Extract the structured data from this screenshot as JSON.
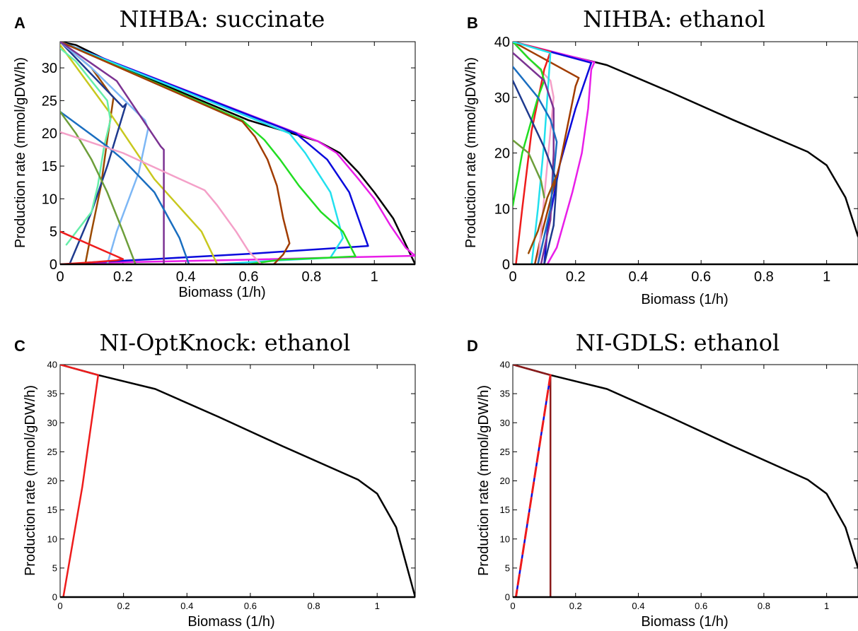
{
  "chart_data": [
    {
      "id": "A",
      "type": "line",
      "panel_label": "A",
      "title": "NIHBA: succinate",
      "xlabel": "Biomass (1/h)",
      "ylabel": "Production rate (mmol/gDW/h)",
      "xlim": [
        0,
        1.13
      ],
      "ylim": [
        0,
        34
      ],
      "xticks": [
        0,
        0.2,
        0.4,
        0.6,
        0.8,
        1
      ],
      "yticks": [
        0,
        5,
        10,
        15,
        20,
        25,
        30
      ],
      "xtick_labels": [
        "0",
        "0.2",
        "0.4",
        "0.6",
        "0.8",
        "1"
      ],
      "ytick_labels": [
        "0",
        "5",
        "10",
        "15",
        "20",
        "25",
        "30"
      ],
      "tick_font_size": 20,
      "grid": false,
      "series": [
        {
          "color": "#000000",
          "x": [
            0,
            0.05,
            0.2,
            0.4,
            0.6,
            0.82,
            0.89,
            0.95,
            1.0,
            1.06,
            1.1,
            1.13
          ],
          "y": [
            34,
            33.5,
            30,
            26,
            22,
            18.8,
            17,
            14,
            11,
            7,
            3,
            0
          ]
        },
        {
          "color": "#e81ee8",
          "x": [
            0,
            0.82,
            0.88,
            0.95,
            1.0,
            1.05,
            1.1,
            1.13,
            0.95,
            0.6,
            0.3,
            0.1,
            0.05
          ],
          "y": [
            34,
            18.8,
            17,
            13,
            10,
            6,
            2.5,
            1.3,
            1.1,
            0.7,
            0.4,
            0.2,
            0
          ]
        },
        {
          "color": "#0a0adc",
          "x": [
            0,
            0.75,
            0.85,
            0.92,
            0.98,
            0.6,
            0.3,
            0.1,
            0.03
          ],
          "y": [
            34,
            20,
            16,
            11,
            2.8,
            1.6,
            0.8,
            0.3,
            0
          ]
        },
        {
          "color": "#22e0ee",
          "x": [
            0,
            0.73,
            0.78,
            0.82,
            0.86,
            0.9,
            0.86,
            0.7,
            0.5
          ],
          "y": [
            34,
            20,
            17,
            14,
            11,
            4,
            1,
            0.6,
            0
          ]
        },
        {
          "color": "#22dd22",
          "x": [
            0,
            0.58,
            0.65,
            0.7,
            0.76,
            0.83,
            0.9,
            0.94,
            0.85,
            0.7,
            0.6
          ],
          "y": [
            34,
            22,
            19,
            16,
            12,
            8,
            5,
            1.2,
            1.0,
            0.7,
            0
          ]
        },
        {
          "color": "#a13c00",
          "x": [
            0,
            0.58,
            0.62,
            0.66,
            0.69,
            0.71,
            0.73,
            0.71,
            0.68
          ],
          "y": [
            34,
            21.8,
            19.5,
            16,
            12,
            7,
            3.2,
            1.5,
            0
          ]
        },
        {
          "color": "#9b4a00",
          "x": [
            0,
            0.1,
            0.16,
            0.17,
            0.15,
            0.13,
            0.1,
            0.08
          ],
          "y": [
            34,
            30,
            26,
            25.5,
            19,
            12,
            5,
            0
          ]
        },
        {
          "color": "#c8c81e",
          "x": [
            0,
            0.16,
            0.3,
            0.45,
            0.5
          ],
          "y": [
            33.5,
            23,
            13,
            5,
            0
          ]
        },
        {
          "color": "#1e3a8e",
          "x": [
            0,
            0.1,
            0.2,
            0.21,
            0.15,
            0.1,
            0.03
          ],
          "y": [
            34,
            29,
            24,
            24.5,
            15,
            8,
            0
          ]
        },
        {
          "color": "#7db7f5",
          "x": [
            0,
            0.1,
            0.27,
            0.28,
            0.25,
            0.18,
            0.15
          ],
          "y": [
            34,
            30,
            22,
            20.7,
            14,
            5,
            0
          ]
        },
        {
          "color": "#7b3292",
          "x": [
            0,
            0.18,
            0.32,
            0.33,
            0.33,
            0.33
          ],
          "y": [
            34,
            28,
            18,
            17.5,
            5,
            0
          ]
        },
        {
          "color": "#66eeaa",
          "x": [
            0,
            0.05,
            0.15,
            0.16,
            0.14,
            0.12,
            0.1,
            0.02
          ],
          "y": [
            33,
            31,
            25,
            22,
            18,
            12,
            8,
            3
          ]
        },
        {
          "color": "#1a6ec0",
          "x": [
            0,
            0.15,
            0.2,
            0.3,
            0.38,
            0.41
          ],
          "y": [
            23.3,
            18,
            16,
            11,
            4,
            0
          ]
        },
        {
          "color": "#6d9e3a",
          "x": [
            0,
            0.05,
            0.1,
            0.15,
            0.2,
            0.24
          ],
          "y": [
            23.3,
            20,
            16,
            11,
            5,
            0
          ]
        },
        {
          "color": "#f4a0c8",
          "x": [
            0,
            0.2,
            0.46,
            0.5,
            0.56,
            0.6,
            0.64
          ],
          "y": [
            20.2,
            17,
            11.3,
            9,
            5,
            2,
            0
          ]
        },
        {
          "color": "#ee1c1c",
          "x": [
            0,
            0.2,
            0.18,
            0.1,
            0.05,
            0.02,
            0
          ],
          "y": [
            5,
            0.8,
            0.6,
            0.3,
            0.15,
            0.05,
            0
          ]
        }
      ]
    },
    {
      "id": "B",
      "type": "line",
      "panel_label": "B",
      "title": "NIHBA: ethanol",
      "xlabel": "Biomass (1/h)",
      "ylabel": "Production rate (mmol/gDW/h)",
      "xlim": [
        0,
        1.1
      ],
      "ylim": [
        0,
        40
      ],
      "xticks": [
        0,
        0.2,
        0.4,
        0.6,
        0.8,
        1
      ],
      "yticks": [
        0,
        10,
        20,
        30,
        40
      ],
      "xtick_labels": [
        "0",
        "0.2",
        "0.4",
        "0.6",
        "0.8",
        "1"
      ],
      "ytick_labels": [
        "0",
        "10",
        "20",
        "30",
        "40"
      ],
      "tick_font_size": 20,
      "grid": false,
      "series": [
        {
          "color": "#000000",
          "x": [
            0,
            0.12,
            0.25,
            0.3,
            0.5,
            0.7,
            0.94,
            1.0,
            1.06,
            1.1
          ],
          "y": [
            40,
            38.2,
            36.5,
            35.8,
            31,
            26,
            20.2,
            17.8,
            12,
            5
          ]
        },
        {
          "color": "#e81ee8",
          "x": [
            0,
            0.26,
            0.25,
            0.24,
            0.22,
            0.19,
            0.16,
            0.14,
            0.12,
            0.11
          ],
          "y": [
            40,
            36.3,
            35,
            28,
            20,
            13,
            7,
            3,
            1,
            0
          ]
        },
        {
          "color": "#0a0adc",
          "x": [
            0,
            0.25,
            0.2,
            0.15,
            0.11,
            0.1
          ],
          "y": [
            40,
            36.2,
            28,
            18,
            6,
            0
          ]
        },
        {
          "color": "#a13c00",
          "x": [
            0,
            0.21,
            0.2,
            0.15,
            0.09,
            0.07
          ],
          "y": [
            40,
            33.5,
            32,
            18,
            5,
            0
          ]
        },
        {
          "color": "#f4a0c8",
          "x": [
            0,
            0.12,
            0.13,
            0.11,
            0.09,
            0.08
          ],
          "y": [
            40,
            33,
            30,
            18,
            6,
            0
          ]
        },
        {
          "color": "#ee1c1c",
          "x": [
            0,
            0.12,
            0.1,
            0.06,
            0.03,
            0.01
          ],
          "y": [
            40,
            38.2,
            35,
            24,
            10,
            0
          ]
        },
        {
          "color": "#22dd22",
          "x": [
            0,
            0.05,
            0.09,
            0.1,
            0.08,
            0.03,
            0
          ],
          "y": [
            40,
            37,
            35,
            33,
            30,
            20,
            10.5
          ]
        },
        {
          "color": "#22e0ee",
          "x": [
            0,
            0.12,
            0.11,
            0.1,
            0.08,
            0.06
          ],
          "y": [
            40,
            38,
            30,
            22,
            10,
            0
          ]
        },
        {
          "color": "#7b3292",
          "x": [
            0,
            0.1,
            0.13,
            0.13,
            0.12,
            0.09
          ],
          "y": [
            38,
            33,
            28,
            20,
            8,
            0
          ]
        },
        {
          "color": "#1a6ec0",
          "x": [
            0,
            0.08,
            0.12,
            0.14,
            0.12,
            0.08
          ],
          "y": [
            35.5,
            30,
            26,
            22,
            10,
            0
          ]
        },
        {
          "color": "#1e3a8e",
          "x": [
            0,
            0.05,
            0.1,
            0.14,
            0.13,
            0.1
          ],
          "y": [
            33,
            27,
            21,
            15,
            7,
            0
          ]
        },
        {
          "color": "#6d9e3a",
          "x": [
            0,
            0.05,
            0.09,
            0.1
          ],
          "y": [
            22.3,
            20,
            15,
            12
          ]
        },
        {
          "color": "#9b4a00",
          "x": [
            0.05,
            0.08,
            0.11,
            0.14
          ],
          "y": [
            2,
            6,
            12,
            16
          ]
        }
      ]
    },
    {
      "id": "C",
      "type": "line",
      "panel_label": "C",
      "title": "NI-OptKnock: ethanol",
      "xlabel": "Biomass (1/h)",
      "ylabel": "Production rate (mmol/gDW/h)",
      "xlim": [
        0,
        1.12
      ],
      "ylim": [
        0,
        40
      ],
      "xticks": [
        0,
        0.2,
        0.4,
        0.6,
        0.8,
        1
      ],
      "yticks": [
        0,
        5,
        10,
        15,
        20,
        25,
        30,
        35,
        40
      ],
      "xtick_labels": [
        "0",
        "0.2",
        "0.4",
        "0.6",
        "0.8",
        "1"
      ],
      "ytick_labels": [
        "0",
        "5",
        "10",
        "15",
        "20",
        "25",
        "30",
        "35",
        "40"
      ],
      "tick_font_size": 13,
      "grid": false,
      "series": [
        {
          "color": "#000000",
          "x": [
            0,
            0.12,
            0.3,
            0.5,
            0.7,
            0.94,
            1.0,
            1.06,
            1.12
          ],
          "y": [
            40,
            38.2,
            35.8,
            31,
            26,
            20.2,
            17.8,
            12,
            0
          ]
        },
        {
          "color": "#ee1c1c",
          "x": [
            0,
            0.12,
            0.07,
            0.01
          ],
          "y": [
            40,
            38.2,
            19,
            0
          ]
        }
      ]
    },
    {
      "id": "D",
      "type": "line",
      "panel_label": "D",
      "title": "NI-GDLS: ethanol",
      "xlabel": "Biomass (1/h)",
      "ylabel": "Production rate (mmol/gDW/h)",
      "xlim": [
        0,
        1.1
      ],
      "ylim": [
        0,
        40
      ],
      "xticks": [
        0,
        0.2,
        0.4,
        0.6,
        0.8,
        1
      ],
      "yticks": [
        0,
        5,
        10,
        15,
        20,
        25,
        30,
        35,
        40
      ],
      "xtick_labels": [
        "0",
        "0.2",
        "0.4",
        "0.6",
        "0.8",
        "1"
      ],
      "ytick_labels": [
        "0",
        "5",
        "10",
        "15",
        "20",
        "25",
        "30",
        "35",
        "40"
      ],
      "tick_font_size": 13,
      "grid": false,
      "series": [
        {
          "color": "#000000",
          "x": [
            0,
            0.12,
            0.3,
            0.5,
            0.7,
            0.94,
            1.0,
            1.06,
            1.1
          ],
          "y": [
            40,
            38.2,
            35.8,
            31,
            26,
            20.2,
            17.8,
            12,
            5
          ]
        },
        {
          "color": "#8b1a1a",
          "x": [
            0,
            0.12,
            0.12
          ],
          "y": [
            40,
            38.2,
            0
          ]
        },
        {
          "color": "#0a0adc",
          "x": [
            0.12,
            0.01
          ],
          "y": [
            38.2,
            0
          ]
        },
        {
          "color": "#ee1c1c",
          "dashed": true,
          "x": [
            0.12,
            0.01
          ],
          "y": [
            38.2,
            0
          ]
        }
      ]
    }
  ]
}
